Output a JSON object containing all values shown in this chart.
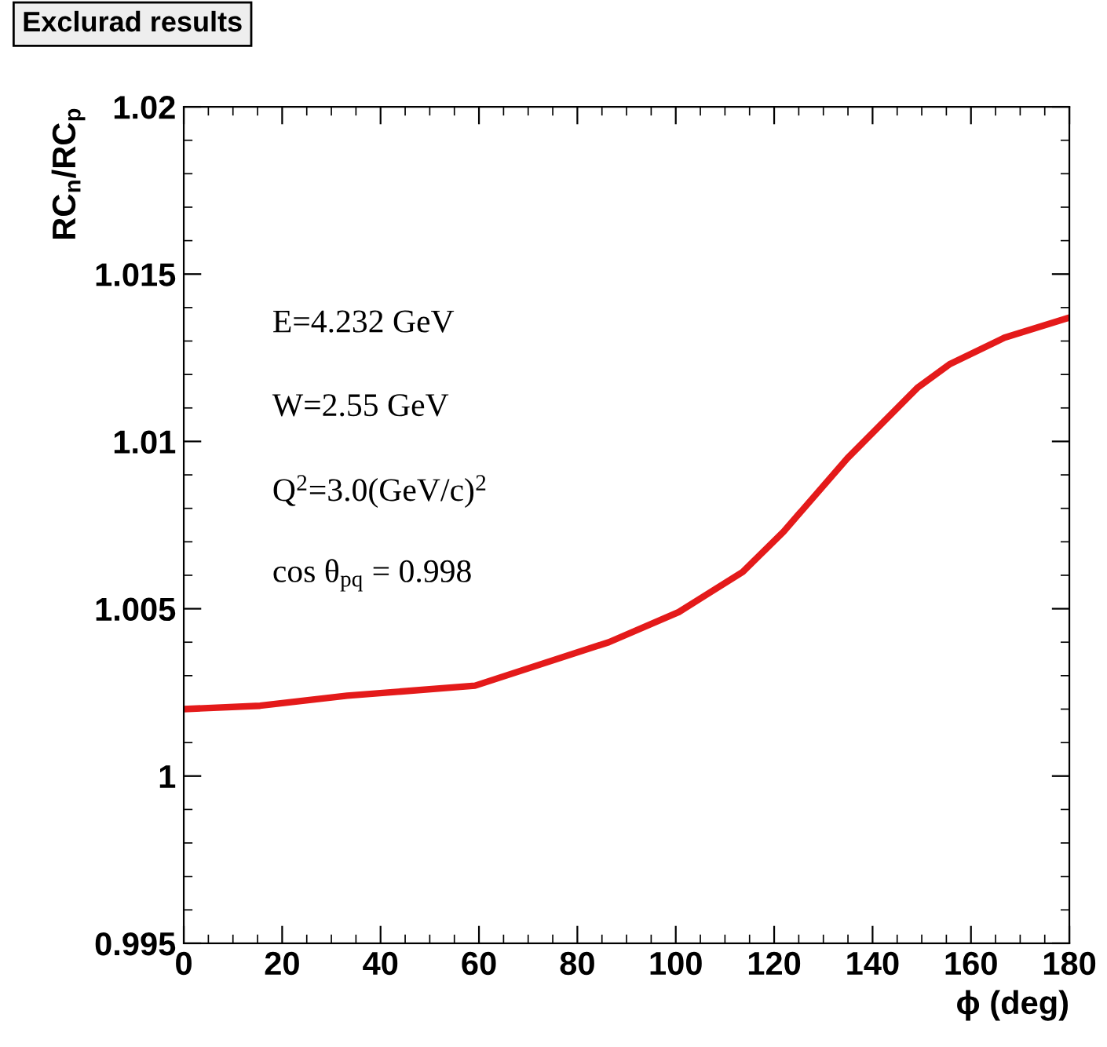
{
  "chart_data": {
    "type": "line",
    "title": "Exclurad results",
    "xlabel": "ϕ (deg)",
    "ylabel": "RC$_{n}$/RC$_{p}$",
    "annotations": [
      "E=4.232 GeV",
      "W=2.55 GeV",
      "Q$^{2}$=3.0(GeV/c)$^{2}$",
      "cos θ$_{pq}$ = 0.998"
    ],
    "series": [
      {
        "color": "#e41a1a",
        "x": [
          0,
          15.5,
          33.2,
          59.2,
          86.4,
          100.6,
          113.6,
          121.9,
          134.9,
          149.1,
          155.6,
          166.8,
          180
        ],
        "values": [
          1.002,
          1.0021,
          1.0024,
          1.0027,
          1.004,
          1.0049,
          1.0061,
          1.0073,
          1.0095,
          1.0116,
          1.0123,
          1.0131,
          1.0137
        ]
      }
    ],
    "xlim": [
      0,
      180
    ],
    "xticks": [
      0,
      20,
      40,
      60,
      80,
      100,
      120,
      140,
      160,
      180
    ],
    "ylim": [
      0.995,
      1.02
    ],
    "yticks": [
      0.995,
      1,
      1.005,
      1.01,
      1.015,
      1.02
    ],
    "grid": false,
    "legend": false,
    "marker": "none",
    "line_style": "solid"
  }
}
